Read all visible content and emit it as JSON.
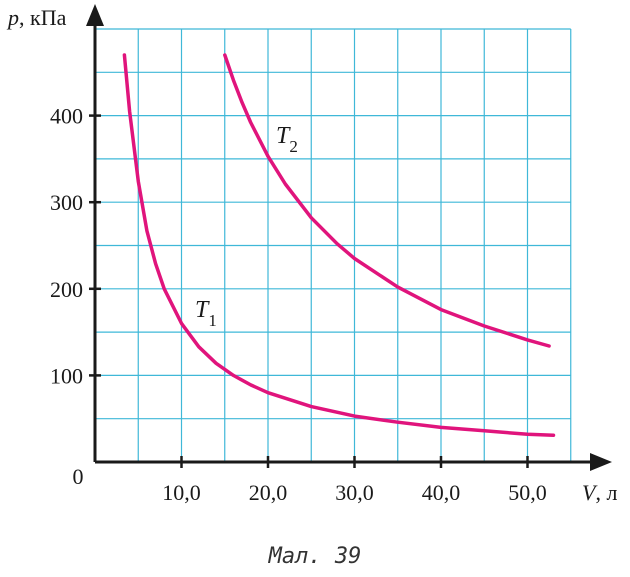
{
  "caption": "Мал. 39",
  "chart_data": {
    "type": "line",
    "x_label": {
      "symbol": "V",
      "unit": ", л"
    },
    "y_label": {
      "symbol": "p",
      "unit": ", кПа"
    },
    "origin_label": "0",
    "xlim": [
      0,
      55
    ],
    "ylim": [
      0,
      500
    ],
    "grid": true,
    "x_ticks": [
      {
        "value": 10,
        "label": "10,0"
      },
      {
        "value": 20,
        "label": "20,0"
      },
      {
        "value": 30,
        "label": "30,0"
      },
      {
        "value": 40,
        "label": "40,0"
      },
      {
        "value": 50,
        "label": "50,0"
      }
    ],
    "y_ticks": [
      {
        "value": 100,
        "label": "100"
      },
      {
        "value": 200,
        "label": "200"
      },
      {
        "value": 300,
        "label": "300"
      },
      {
        "value": 400,
        "label": "400"
      }
    ],
    "series": [
      {
        "name": "T",
        "subscript": "1",
        "color": "#e0147c",
        "x": [
          3.4,
          4,
          5,
          6,
          7,
          8,
          10,
          12,
          14,
          16,
          18,
          20,
          25,
          30,
          35,
          40,
          45,
          50,
          53
        ],
        "y": [
          470,
          405,
          324,
          267,
          229,
          200,
          160,
          133,
          114,
          100,
          89,
          80,
          64,
          53,
          46,
          40,
          36,
          32,
          31
        ]
      },
      {
        "name": "T",
        "subscript": "2",
        "color": "#e0147c",
        "x": [
          15,
          16,
          17,
          18,
          20,
          22,
          25,
          28,
          30,
          35,
          40,
          45,
          50,
          52.5
        ],
        "y": [
          470,
          441,
          415,
          392,
          353,
          321,
          282,
          252,
          235,
          202,
          176,
          157,
          141,
          134
        ]
      }
    ]
  }
}
